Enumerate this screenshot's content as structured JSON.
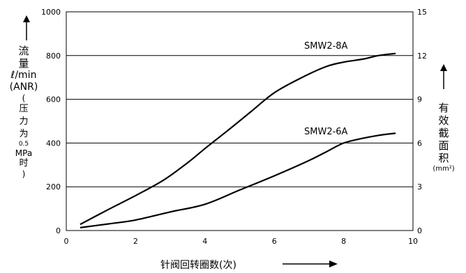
{
  "chart_data": {
    "type": "line",
    "x_axis": {
      "min": 0,
      "max": 10,
      "ticks": [
        0,
        2,
        4,
        6,
        8,
        10
      ],
      "label": "针阀回转圈数(次)"
    },
    "y_left": {
      "min": 0,
      "max": 1000,
      "ticks": [
        0,
        200,
        400,
        600,
        800,
        1000
      ],
      "label": {
        "l1": "流",
        "l2": "量",
        "l3": "ℓ/min",
        "l4": "(ANR)",
        "l5": "(",
        "l6": "压",
        "l7": "力",
        "l8": "为",
        "l9": "0.5",
        "l10": "MPa",
        "l11": "时",
        "l12": ")"
      }
    },
    "y_right": {
      "min": 0,
      "max": 15,
      "ticks": [
        0,
        3,
        6,
        9,
        12,
        15
      ],
      "label": {
        "c1": "有",
        "c2": "效",
        "c3": "截",
        "c4": "面",
        "c5": "积",
        "unit": "(mm²)"
      }
    },
    "gridlines_y": [
      200,
      400,
      600,
      800
    ],
    "series": [
      {
        "name": "SMW2-8A",
        "x": [
          0.4,
          1.2,
          2.0,
          2.8,
          3.5,
          4.0,
          4.6,
          5.3,
          6.0,
          6.8,
          7.5,
          8.0,
          8.6,
          9.0,
          9.5
        ],
        "y": [
          28,
          95,
          160,
          230,
          310,
          375,
          450,
          540,
          630,
          700,
          750,
          770,
          785,
          800,
          810
        ]
      },
      {
        "name": "SMW2-6A",
        "x": [
          0.4,
          1.2,
          2.0,
          3.0,
          4.0,
          5.0,
          6.0,
          7.0,
          7.5,
          8.0,
          8.5,
          9.0,
          9.5
        ],
        "y": [
          13,
          30,
          48,
          85,
          120,
          185,
          250,
          320,
          360,
          400,
          420,
          435,
          445
        ]
      }
    ],
    "grid": true
  }
}
